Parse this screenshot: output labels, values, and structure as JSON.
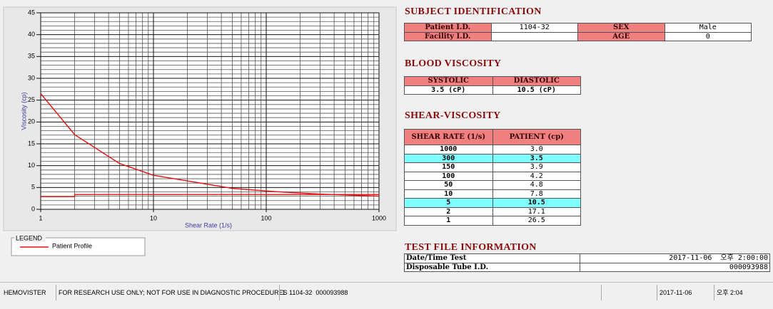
{
  "chart_data": {
    "type": "line",
    "x_label": "Shear Rate (1/s)",
    "y_label": "Viscosity (cp)",
    "x": [
      1,
      2,
      5,
      10,
      50,
      100,
      150,
      300,
      1000
    ],
    "xlim": [
      1,
      1000
    ],
    "xticks": [
      1,
      10,
      100,
      1000
    ],
    "xscale": "log",
    "ylim": [
      0,
      45
    ],
    "yticks": [
      0,
      5,
      10,
      15,
      20,
      25,
      30,
      35,
      40,
      45
    ],
    "grid": true,
    "minor_grid": true,
    "legend_title": "LEGEND",
    "series": [
      {
        "name": "Patient Profile",
        "color": "#e01010",
        "values": [
          26.5,
          17.1,
          10.5,
          7.8,
          4.8,
          4.2,
          3.9,
          3.5,
          3.0
        ]
      },
      {
        "color": "#e01010",
        "x": [
          1,
          2,
          2,
          1000
        ],
        "values": [
          2.9,
          2.9,
          3.4,
          3.4
        ]
      }
    ]
  },
  "subject_identification": {
    "title": "SUBJECT IDENTIFICATION",
    "rows": [
      [
        "Patient I.D.",
        "1104-32",
        "SEX",
        "Male"
      ],
      [
        "Facility I.D.",
        null,
        "AGE",
        "0"
      ]
    ]
  },
  "blood_viscosity": {
    "title": "BLOOD VISCOSITY",
    "header": [
      "SYSTOLIC",
      "DIASTOLIC"
    ],
    "rows": [
      [
        "3.5 (cP)",
        "10.5 (cP)"
      ]
    ]
  },
  "shear_viscosity": {
    "title": "SHEAR-VISCOSITY",
    "header": [
      "SHEAR RATE (1/s)",
      "PATIENT (cp)"
    ],
    "rows": [
      {
        "cells": [
          "1000",
          "3.0"
        ],
        "highlight": false
      },
      {
        "cells": [
          "300",
          "3.5"
        ],
        "highlight": true
      },
      {
        "cells": [
          "150",
          "3.9"
        ],
        "highlight": false
      },
      {
        "cells": [
          "100",
          "4.2"
        ],
        "highlight": false
      },
      {
        "cells": [
          "50",
          "4.8"
        ],
        "highlight": false
      },
      {
        "cells": [
          "10",
          "7.8"
        ],
        "highlight": false
      },
      {
        "cells": [
          "5",
          "10.5"
        ],
        "highlight": true
      },
      {
        "cells": [
          "2",
          "17.1"
        ],
        "highlight": false
      },
      {
        "cells": [
          "1",
          "26.5"
        ],
        "highlight": false
      }
    ]
  },
  "test_file": {
    "title": "TEST FILE INFORMATION",
    "rows": [
      [
        "Date/Time Test",
        "2017-11-06  오후 2:00:00"
      ],
      [
        "Disposable Tube I.D.",
        "000093988"
      ]
    ]
  },
  "status_bar": [
    "HEMOVISTER",
    "FOR RESEARCH USE ONLY; NOT FOR USE IN DIAGNOSTIC PROCEDURES",
    "1  1104-32  000093988",
    "2017-11-06",
    "오후 2:04"
  ]
}
